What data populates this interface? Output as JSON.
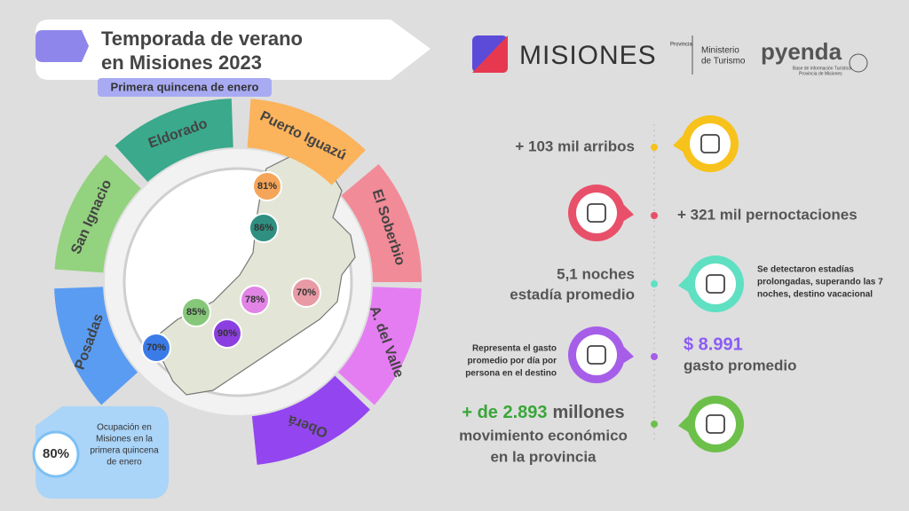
{
  "header": {
    "title_lines": [
      "Temporada de verano",
      "en Misiones 2023"
    ],
    "subtitle": "Primera quincena de enero"
  },
  "logos": {
    "misiones": "MISIONES",
    "provincia": "Provincia",
    "ministerio_lines": [
      "Ministerio",
      "de Turismo"
    ],
    "pyenda": "pyenda",
    "pyenda_tagline_lines": [
      "Base de información Turística",
      "Provincia de Misiones"
    ]
  },
  "regions": [
    {
      "name": "Eldorado",
      "occupancy": "86%"
    },
    {
      "name": "Puerto Iguazú",
      "occupancy": "81%"
    },
    {
      "name": "El Soberbio",
      "occupancy": "70%"
    },
    {
      "name": "A. del Valle",
      "occupancy": "78%"
    },
    {
      "name": "Oberá",
      "occupancy": "90%"
    },
    {
      "name": "Posadas",
      "occupancy": "70%"
    },
    {
      "name": "San Ignacio",
      "occupancy": "85%"
    }
  ],
  "total_occupancy": {
    "value": "80%",
    "caption_lines": [
      "Ocupación en",
      "Misiones en la",
      "primera quincena",
      "de enero"
    ]
  },
  "stats": [
    {
      "lines": [
        "+ 103 mil arribos"
      ]
    },
    {
      "lines": [
        "+ 321 mil pernoctaciones"
      ]
    },
    {
      "lines": [
        "5,1 noches",
        "estadía promedio"
      ],
      "note_lines": [
        "Se detectaron estadías",
        "prolongadas, superando las 7",
        "noches, destino vacacional"
      ]
    },
    {
      "lines": [
        "$ 8.991",
        "gasto promedio"
      ],
      "note_lines": [
        "Representa el gasto",
        "promedio por día por",
        "persona en el destino"
      ]
    },
    {
      "highlight": "+ de 2.893",
      "rest": "millones",
      "lines": [
        "movimiento económico",
        "en la provincia"
      ]
    }
  ]
}
